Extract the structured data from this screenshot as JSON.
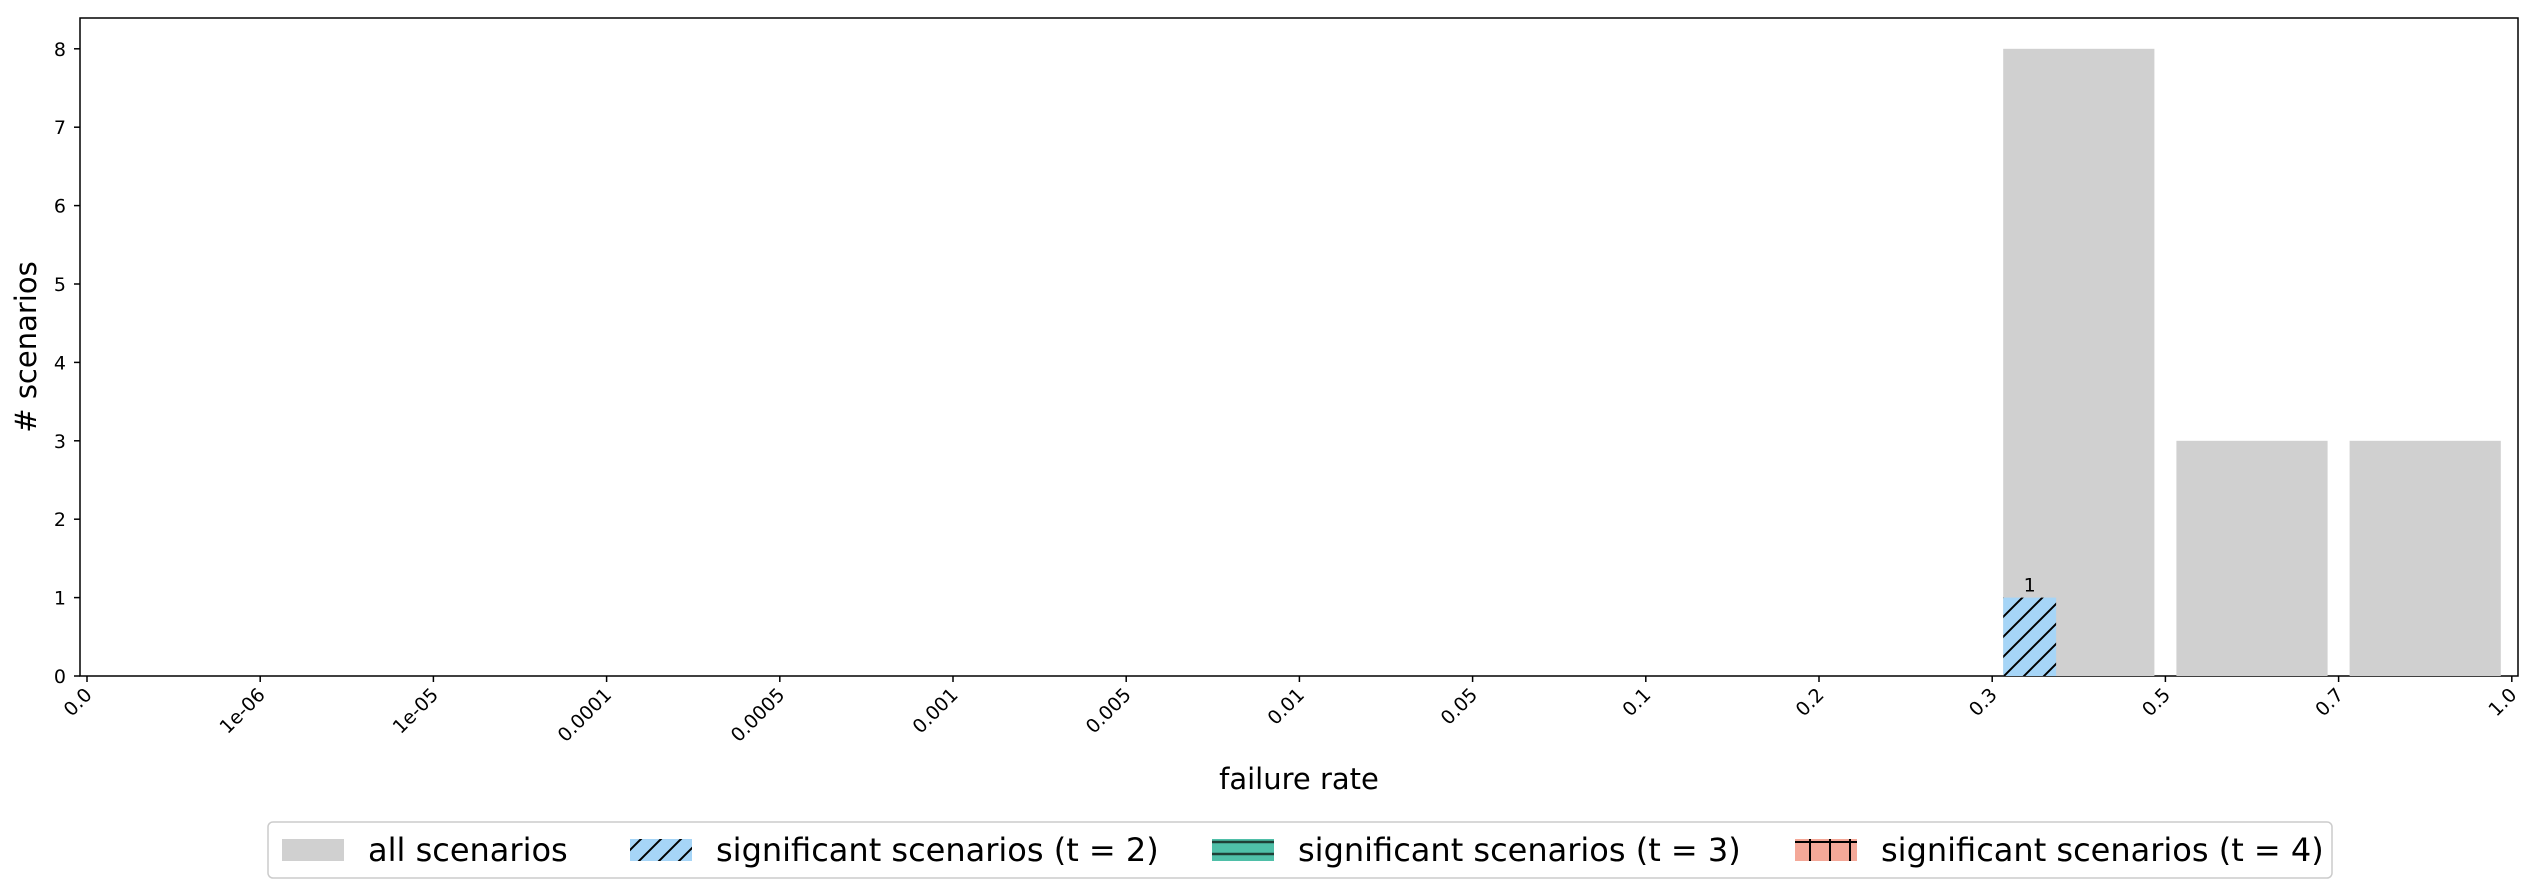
{
  "chart_data": {
    "type": "bar",
    "title": "",
    "xlabel": "failure rate",
    "ylabel": "# scenarios",
    "x_ticks": [
      "0.0",
      "1e-06",
      "1e-05",
      "0.0001",
      "0.0005",
      "0.001",
      "0.005",
      "0.01",
      "0.05",
      "0.1",
      "0.2",
      "0.3",
      "0.5",
      "0.7",
      "1.0"
    ],
    "categories": [
      "0.3–0.5",
      "0.5–0.7",
      "0.7–1.0"
    ],
    "ylim": [
      0,
      8.4
    ],
    "y_ticks": [
      0,
      1,
      2,
      3,
      4,
      5,
      6,
      7,
      8
    ],
    "grid": false,
    "legend_position": "bottom-center",
    "series": [
      {
        "name": "all scenarios",
        "values": [
          8,
          3,
          3
        ],
        "color": "#d0d0d0",
        "hatch": "none"
      },
      {
        "name": "significant scenarios (t = 2)",
        "values": [
          1,
          0,
          0
        ],
        "color": "#a6d5f7",
        "hatch": "diagonal"
      },
      {
        "name": "significant scenarios (t = 3)",
        "values": [
          0,
          0,
          0
        ],
        "color": "#4fbfa8",
        "hatch": "horizontal"
      },
      {
        "name": "significant scenarios (t = 4)",
        "values": [
          0,
          0,
          0
        ],
        "color": "#f4a898",
        "hatch": "plus"
      }
    ],
    "data_labels": [
      {
        "series": "significant scenarios (t = 2)",
        "category": "0.3–0.5",
        "text": "1"
      }
    ]
  }
}
